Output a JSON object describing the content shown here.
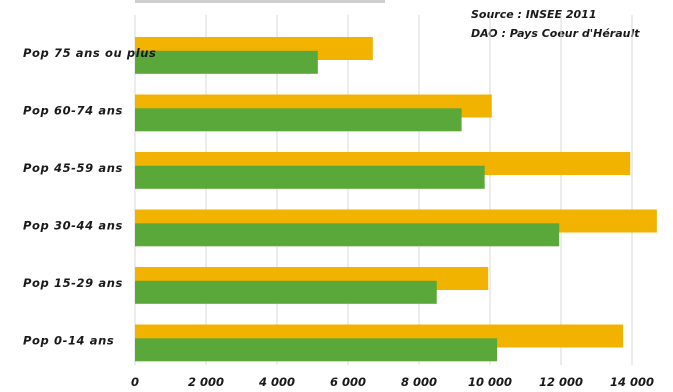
{
  "annotations": {
    "source": "Source : INSEE 2011",
    "dao": "DAO : Pays Coeur d'Hérault"
  },
  "chart_data": {
    "type": "bar",
    "orientation": "horizontal",
    "categories": [
      "Pop 75 ans ou plus",
      "Pop 60-74 ans",
      "Pop 45-59 ans",
      "Pop 30-44 ans",
      "Pop 15-29 ans",
      "Pop 0-14 ans"
    ],
    "series": [
      {
        "color": "#f2b200",
        "values": [
          6700,
          10050,
          13950,
          14700,
          9950,
          13750
        ]
      },
      {
        "color": "#5aa83a",
        "values": [
          5150,
          9200,
          9850,
          11950,
          8500,
          10200
        ]
      }
    ],
    "xlim": [
      0,
      14000
    ],
    "xticks": [
      0,
      2000,
      4000,
      6000,
      8000,
      10000,
      12000,
      14000
    ],
    "tick_labels": [
      "0",
      "2 000",
      "4 000",
      "6 000",
      "8 000",
      "10 000",
      "12 000",
      "14 000"
    ],
    "grid": true,
    "legend": "none"
  }
}
